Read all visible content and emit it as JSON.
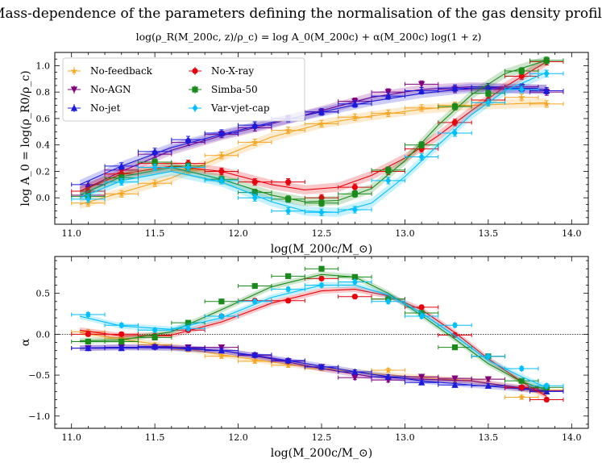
{
  "figure": {
    "title": "Mass-dependence of the parameters defining the normalisation of the gas density profile",
    "subtitle": "log(ρ_R(M_200c, z)/ρ_c) = log A_0(M_200c) + α(M_200c) log(1 + z)"
  },
  "colors": {
    "No-feedback": "#f5a623",
    "No-AGN": "#800080",
    "No-jet": "#1a1adb",
    "No-X-ray": "#e8000b",
    "Simba-50": "#1a8a1a",
    "Var-vjet-cap": "#00bfff"
  },
  "chart_data": [
    {
      "type": "line",
      "name": "top-panel",
      "xlabel": "log(M_200c/M_⊙)",
      "ylabel": "log A_0 = log(ρ_R0/ρ_c)",
      "xlim": [
        10.9,
        14.1
      ],
      "ylim": [
        -0.2,
        1.1
      ],
      "xticks": [
        11.0,
        11.5,
        12.0,
        12.5,
        13.0,
        13.5,
        14.0
      ],
      "yticks": [
        0.0,
        0.2,
        0.4,
        0.6,
        0.8,
        1.0
      ],
      "xtick_labels": [
        "11.0",
        "11.5",
        "12.0",
        "12.5",
        "13.0",
        "13.5",
        "14.0"
      ],
      "ytick_labels": [
        "0.0",
        "0.2",
        "0.4",
        "0.6",
        "0.8",
        "1.0"
      ],
      "legend": {
        "position": "upper-left",
        "entries": [
          "No-feedback",
          "No-AGN",
          "No-jet",
          "No-X-ray",
          "Simba-50",
          "Var-vjet-cap"
        ]
      },
      "series": [
        {
          "name": "No-feedback",
          "marker": "star",
          "x": [
            11.1,
            11.3,
            11.5,
            11.7,
            11.9,
            12.1,
            12.3,
            12.5,
            12.7,
            12.9,
            13.1,
            13.3,
            13.5,
            13.7,
            13.85
          ],
          "y": [
            -0.04,
            0.03,
            0.11,
            0.21,
            0.32,
            0.42,
            0.51,
            0.56,
            0.61,
            0.64,
            0.68,
            0.7,
            0.72,
            0.76,
            0.71
          ],
          "fit_x": [
            11.05,
            11.3,
            11.6,
            11.9,
            12.2,
            12.5,
            12.8,
            13.1,
            13.4,
            13.85
          ],
          "fit_y": [
            -0.05,
            0.04,
            0.15,
            0.31,
            0.46,
            0.56,
            0.62,
            0.67,
            0.7,
            0.72
          ]
        },
        {
          "name": "No-AGN",
          "marker": "triangle-down",
          "x": [
            11.1,
            11.3,
            11.5,
            11.7,
            11.9,
            12.1,
            12.3,
            12.5,
            12.7,
            12.9,
            13.1,
            13.3,
            13.5,
            13.7,
            13.85
          ],
          "y": [
            0.02,
            0.21,
            0.33,
            0.42,
            0.48,
            0.53,
            0.6,
            0.65,
            0.73,
            0.8,
            0.86,
            0.82,
            0.82,
            0.84,
            0.8
          ],
          "fit_x": [
            11.05,
            11.3,
            11.6,
            11.9,
            12.2,
            12.5,
            12.8,
            13.1,
            13.4,
            13.85
          ],
          "fit_y": [
            0.05,
            0.2,
            0.36,
            0.47,
            0.56,
            0.66,
            0.76,
            0.82,
            0.84,
            0.82
          ]
        },
        {
          "name": "No-jet",
          "marker": "triangle-up",
          "x": [
            11.1,
            11.3,
            11.5,
            11.7,
            11.9,
            12.1,
            12.3,
            12.5,
            12.7,
            12.9,
            13.1,
            13.3,
            13.5,
            13.7,
            13.85
          ],
          "y": [
            0.1,
            0.24,
            0.35,
            0.44,
            0.49,
            0.55,
            0.6,
            0.65,
            0.71,
            0.77,
            0.81,
            0.83,
            0.84,
            0.83,
            0.81
          ],
          "fit_x": [
            11.05,
            11.3,
            11.6,
            11.9,
            12.2,
            12.5,
            12.8,
            13.1,
            13.4,
            13.85
          ],
          "fit_y": [
            0.1,
            0.24,
            0.38,
            0.48,
            0.57,
            0.65,
            0.73,
            0.79,
            0.83,
            0.82
          ]
        },
        {
          "name": "No-X-ray",
          "marker": "circle",
          "x": [
            11.1,
            11.3,
            11.5,
            11.7,
            11.9,
            12.1,
            12.3,
            12.5,
            12.7,
            12.9,
            13.1,
            13.3,
            13.5,
            13.7,
            13.85
          ],
          "y": [
            0.05,
            0.18,
            0.26,
            0.26,
            0.2,
            0.12,
            0.12,
            0.0,
            0.08,
            0.2,
            0.37,
            0.57,
            0.74,
            0.92,
            1.03
          ],
          "fit_x": [
            11.05,
            11.3,
            11.6,
            11.9,
            12.2,
            12.4,
            12.6,
            12.8,
            13.0,
            13.2,
            13.4,
            13.6,
            13.85
          ],
          "fit_y": [
            0.05,
            0.18,
            0.24,
            0.2,
            0.1,
            0.06,
            0.08,
            0.17,
            0.3,
            0.47,
            0.66,
            0.84,
            1.03
          ]
        },
        {
          "name": "Simba-50",
          "marker": "square",
          "x": [
            11.1,
            11.3,
            11.5,
            11.7,
            11.9,
            12.1,
            12.3,
            12.5,
            12.7,
            12.9,
            13.1,
            13.3,
            13.5,
            13.7,
            13.85
          ],
          "y": [
            0.01,
            0.15,
            0.27,
            0.24,
            0.14,
            0.04,
            -0.01,
            -0.04,
            0.03,
            0.21,
            0.4,
            0.69,
            0.79,
            0.96,
            1.04
          ],
          "fit_x": [
            11.05,
            11.3,
            11.6,
            11.9,
            12.2,
            12.4,
            12.6,
            12.8,
            13.0,
            13.2,
            13.4,
            13.6,
            13.85
          ],
          "fit_y": [
            0.02,
            0.16,
            0.23,
            0.14,
            0.02,
            -0.03,
            -0.02,
            0.07,
            0.28,
            0.55,
            0.78,
            0.94,
            1.04
          ]
        },
        {
          "name": "Var-vjet-cap",
          "marker": "diamond",
          "x": [
            11.1,
            11.3,
            11.5,
            11.7,
            11.9,
            12.1,
            12.3,
            12.5,
            12.7,
            12.9,
            13.1,
            13.3,
            13.5,
            13.7,
            13.85
          ],
          "y": [
            -0.01,
            0.12,
            0.23,
            0.23,
            0.13,
            0.0,
            -0.1,
            -0.11,
            -0.09,
            0.13,
            0.31,
            0.49,
            0.72,
            0.82,
            0.94
          ],
          "fit_x": [
            11.05,
            11.3,
            11.6,
            11.9,
            12.2,
            12.4,
            12.6,
            12.8,
            13.0,
            13.2,
            13.4,
            13.6,
            13.85
          ],
          "fit_y": [
            0.0,
            0.13,
            0.2,
            0.12,
            -0.03,
            -0.1,
            -0.11,
            -0.04,
            0.16,
            0.4,
            0.63,
            0.81,
            0.95
          ]
        }
      ]
    },
    {
      "type": "line",
      "name": "bottom-panel",
      "xlabel": "log(M_200c/M_⊙)",
      "ylabel": "α",
      "xlim": [
        10.9,
        14.1
      ],
      "ylim": [
        -1.15,
        0.95
      ],
      "xticks": [
        11.0,
        11.5,
        12.0,
        12.5,
        13.0,
        13.5,
        14.0
      ],
      "yticks": [
        -1.0,
        -0.5,
        0.0,
        0.5
      ],
      "xtick_labels": [
        "11.0",
        "11.5",
        "12.0",
        "12.5",
        "13.0",
        "13.5",
        "14.0"
      ],
      "ytick_labels": [
        "−1.0",
        "−0.5",
        "0.0",
        "0.5"
      ],
      "reference_line": 0.0,
      "series": [
        {
          "name": "No-feedback",
          "marker": "star",
          "x": [
            11.1,
            11.3,
            11.5,
            11.7,
            11.9,
            12.1,
            12.3,
            12.5,
            12.7,
            12.9,
            13.1,
            13.3,
            13.5,
            13.7,
            13.85
          ],
          "y": [
            0.03,
            -0.05,
            -0.13,
            -0.19,
            -0.27,
            -0.33,
            -0.38,
            -0.42,
            -0.46,
            -0.44,
            -0.52,
            -0.56,
            -0.55,
            -0.77,
            -0.68
          ],
          "fit_x": [
            11.05,
            11.3,
            11.6,
            11.9,
            12.2,
            12.5,
            12.8,
            13.1,
            13.4,
            13.85
          ],
          "fit_y": [
            0.02,
            -0.06,
            -0.15,
            -0.25,
            -0.34,
            -0.42,
            -0.48,
            -0.53,
            -0.57,
            -0.72
          ]
        },
        {
          "name": "No-AGN",
          "marker": "triangle-down",
          "x": [
            11.1,
            11.3,
            11.5,
            11.7,
            11.9,
            12.1,
            12.3,
            12.5,
            12.7,
            12.9,
            13.1,
            13.3,
            13.5,
            13.7,
            13.85
          ],
          "y": [
            -0.17,
            -0.16,
            -0.16,
            -0.16,
            -0.16,
            -0.26,
            -0.33,
            -0.4,
            -0.53,
            -0.56,
            -0.52,
            -0.54,
            -0.55,
            -0.66,
            -0.69
          ],
          "fit_x": [
            11.05,
            11.3,
            11.6,
            11.9,
            12.2,
            12.5,
            12.8,
            13.1,
            13.4,
            13.85
          ],
          "fit_y": [
            -0.17,
            -0.16,
            -0.16,
            -0.2,
            -0.3,
            -0.42,
            -0.52,
            -0.55,
            -0.57,
            -0.7
          ]
        },
        {
          "name": "No-jet",
          "marker": "triangle-up",
          "x": [
            11.1,
            11.3,
            11.5,
            11.7,
            11.9,
            12.1,
            12.3,
            12.5,
            12.7,
            12.9,
            13.1,
            13.3,
            13.5,
            13.7,
            13.85
          ],
          "y": [
            -0.17,
            -0.17,
            -0.15,
            -0.17,
            -0.2,
            -0.25,
            -0.32,
            -0.4,
            -0.46,
            -0.52,
            -0.59,
            -0.62,
            -0.63,
            -0.65,
            -0.7
          ],
          "fit_x": [
            11.05,
            11.3,
            11.6,
            11.9,
            12.2,
            12.5,
            12.8,
            13.1,
            13.4,
            13.85
          ],
          "fit_y": [
            -0.17,
            -0.16,
            -0.17,
            -0.2,
            -0.29,
            -0.39,
            -0.49,
            -0.57,
            -0.62,
            -0.69
          ]
        },
        {
          "name": "No-X-ray",
          "marker": "circle",
          "x": [
            11.1,
            11.3,
            11.5,
            11.7,
            11.9,
            12.1,
            12.3,
            12.5,
            12.7,
            12.9,
            13.1,
            13.3,
            13.5,
            13.7,
            13.85
          ],
          "y": [
            0.0,
            0.0,
            -0.02,
            0.05,
            0.22,
            0.41,
            0.41,
            0.68,
            0.46,
            0.43,
            0.33,
            -0.01,
            -0.27,
            -0.65,
            -0.8
          ],
          "fit_x": [
            11.05,
            11.3,
            11.6,
            11.9,
            12.2,
            12.5,
            12.7,
            12.9,
            13.1,
            13.3,
            13.5,
            13.7,
            13.85
          ],
          "fit_y": [
            0.05,
            -0.02,
            -0.01,
            0.15,
            0.38,
            0.53,
            0.55,
            0.47,
            0.3,
            0.02,
            -0.3,
            -0.58,
            -0.76
          ]
        },
        {
          "name": "Simba-50",
          "marker": "square",
          "x": [
            11.1,
            11.3,
            11.5,
            11.7,
            11.9,
            12.1,
            12.3,
            12.5,
            12.7,
            12.9,
            13.1,
            13.3,
            13.5,
            13.7,
            13.85
          ],
          "y": [
            -0.09,
            -0.09,
            -0.04,
            0.14,
            0.4,
            0.59,
            0.71,
            0.8,
            0.7,
            0.43,
            0.26,
            -0.16,
            -0.27,
            -0.57,
            -0.65
          ],
          "fit_x": [
            11.05,
            11.3,
            11.6,
            11.9,
            12.2,
            12.5,
            12.7,
            12.9,
            13.1,
            13.3,
            13.5,
            13.7,
            13.85
          ],
          "fit_y": [
            -0.08,
            -0.07,
            0.03,
            0.3,
            0.58,
            0.73,
            0.7,
            0.5,
            0.23,
            -0.06,
            -0.36,
            -0.58,
            -0.68
          ]
        },
        {
          "name": "Var-vjet-cap",
          "marker": "diamond",
          "x": [
            11.1,
            11.3,
            11.5,
            11.7,
            11.9,
            12.1,
            12.3,
            12.5,
            12.7,
            12.9,
            13.1,
            13.3,
            13.5,
            13.7,
            13.85
          ],
          "y": [
            0.24,
            0.11,
            0.05,
            0.07,
            0.22,
            0.4,
            0.55,
            0.6,
            0.64,
            0.4,
            0.22,
            0.11,
            -0.27,
            -0.42,
            -0.63
          ],
          "fit_x": [
            11.05,
            11.3,
            11.6,
            11.9,
            12.2,
            12.5,
            12.7,
            12.9,
            13.1,
            13.3,
            13.5,
            13.7,
            13.85
          ],
          "fit_y": [
            0.22,
            0.1,
            0.06,
            0.2,
            0.45,
            0.6,
            0.6,
            0.48,
            0.26,
            -0.02,
            -0.32,
            -0.52,
            -0.65
          ]
        }
      ]
    }
  ]
}
